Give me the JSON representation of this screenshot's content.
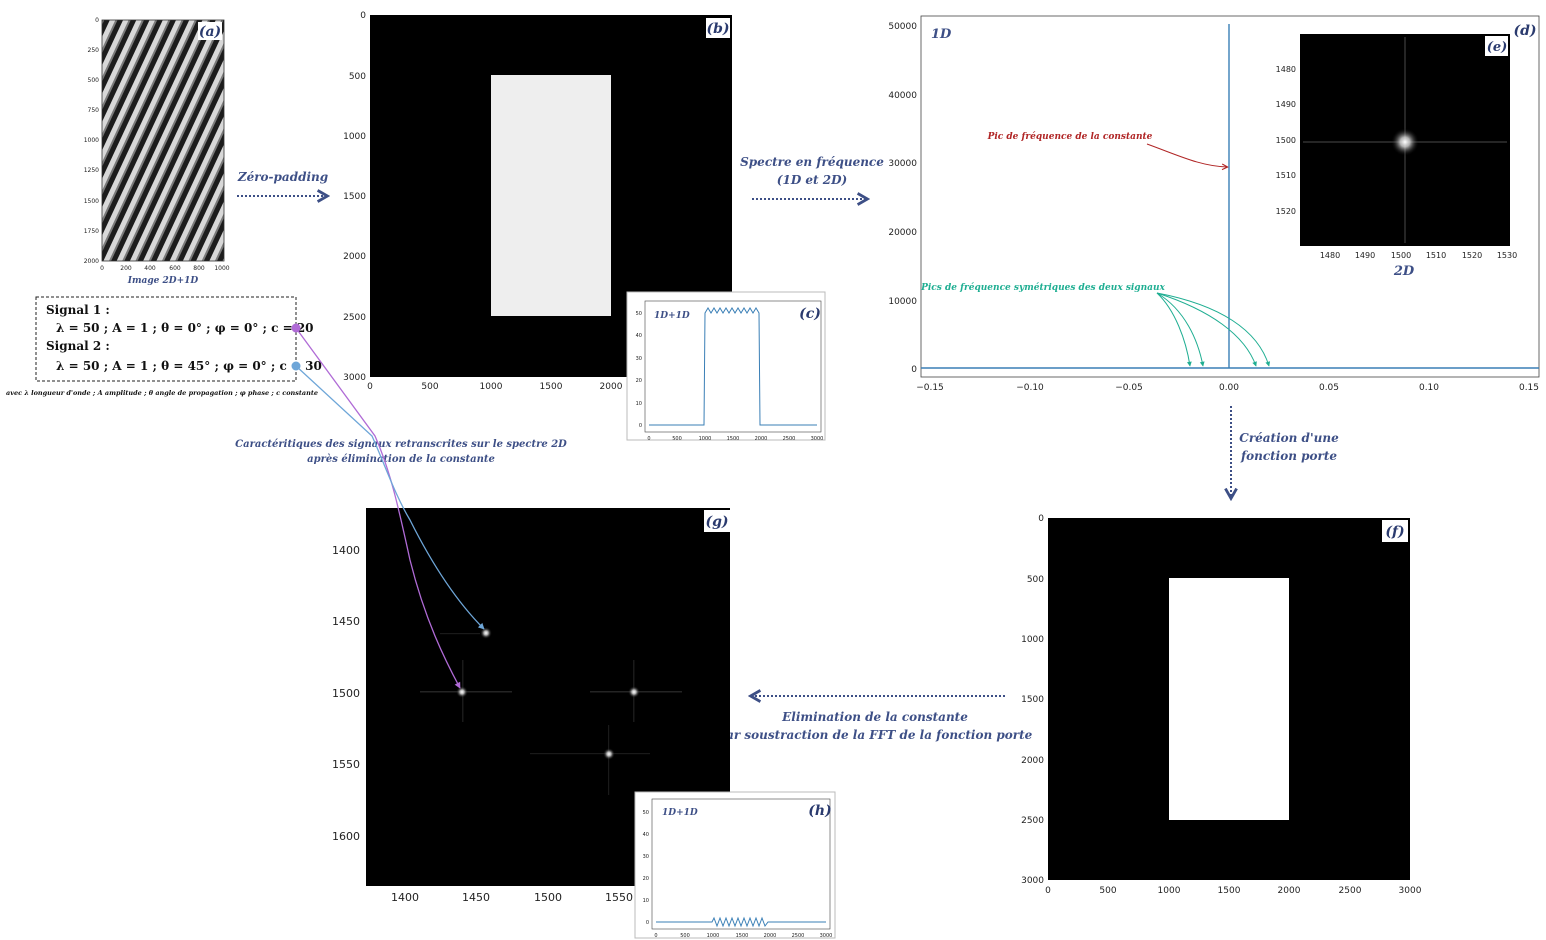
{
  "panels": {
    "a": {
      "tag": "(a)",
      "caption": "Image 2D+1D",
      "yticks": [
        "0",
        "250",
        "500",
        "750",
        "1000",
        "1250",
        "1500",
        "1750",
        "2000"
      ],
      "xticks": [
        "0",
        "200",
        "400",
        "600",
        "800",
        "1000"
      ]
    },
    "b": {
      "tag": "(b)",
      "yticks": [
        "0",
        "500",
        "1000",
        "1500",
        "2000",
        "2500",
        "3000"
      ],
      "xticks": [
        "0",
        "500",
        "1000",
        "1500",
        "2000"
      ]
    },
    "c": {
      "tag": "(c)",
      "label": "1D+1D",
      "yticks": [
        "0",
        "10",
        "20",
        "30",
        "40",
        "50"
      ],
      "xticks": [
        "0",
        "500",
        "1000",
        "1500",
        "2000",
        "2500",
        "3000"
      ]
    },
    "d": {
      "tag": "(d)",
      "label": "1D",
      "yticks": [
        "0",
        "10000",
        "20000",
        "30000",
        "40000",
        "50000"
      ],
      "xticks": [
        "−0.15",
        "−0.10",
        "−0.05",
        "0.00",
        "0.05",
        "0.10",
        "0.15"
      ],
      "ann_const": "Pic de fréquence de la constante",
      "ann_peaks": "Pics de fréquence symétriques des deux signaux"
    },
    "e": {
      "tag": "(e)",
      "label": "2D",
      "yticks": [
        "1480",
        "1490",
        "1500",
        "1510",
        "1520"
      ],
      "xticks": [
        "1480",
        "1490",
        "1500",
        "1510",
        "1520",
        "1530"
      ]
    },
    "f": {
      "tag": "(f)",
      "yticks": [
        "0",
        "500",
        "1000",
        "1500",
        "2000",
        "2500",
        "3000"
      ],
      "xticks": [
        "0",
        "500",
        "1000",
        "1500",
        "2000",
        "2500",
        "3000"
      ]
    },
    "g": {
      "tag": "(g)",
      "yticks": [
        "1400",
        "1450",
        "1500",
        "1550",
        "1600"
      ],
      "xticks": [
        "1400",
        "1450",
        "1500",
        "1550"
      ]
    },
    "h": {
      "tag": "(h)",
      "label": "1D+1D",
      "yticks": [
        "0",
        "10",
        "20",
        "30",
        "40",
        "50"
      ],
      "xticks": [
        "0",
        "500",
        "1000",
        "1500",
        "2000",
        "2500",
        "3000"
      ]
    }
  },
  "steps": {
    "zero_padding": "Zéro-padding",
    "spectrum_l1": "Spectre en fréquence",
    "spectrum_l2": "(1D et 2D)",
    "gate_l1": "Création d'une",
    "gate_l2": "fonction porte",
    "elim_l1": "Elimination de la constante",
    "elim_l2": "par soustraction de la FFT de la fonction porte"
  },
  "signals": {
    "s1_title": "Signal 1 :",
    "s1_params": "λ = 50 ; A = 1 ; θ = 0° ; φ = 0° ; c = 20",
    "s2_title": "Signal 2 :",
    "s2_params": "λ = 50 ; A = 1 ; θ = 45° ; φ = 0° ; c = 30",
    "legend": "avec λ longueur d'onde ; A amplitude ; θ angle de propagation ; φ phase ; c constante",
    "transcribed_l1": "Caractéritiques des signaux retranscrites sur le spectre 2D",
    "transcribed_l2": "après élimination de la constante"
  },
  "colors": {
    "series": "#3a7fb6",
    "annotation_dark": "#3d4f86",
    "annotation_red": "#b02525",
    "annotation_teal": "#1fae92",
    "signal1": "#b06bd6",
    "signal2": "#6ea6d8"
  }
}
